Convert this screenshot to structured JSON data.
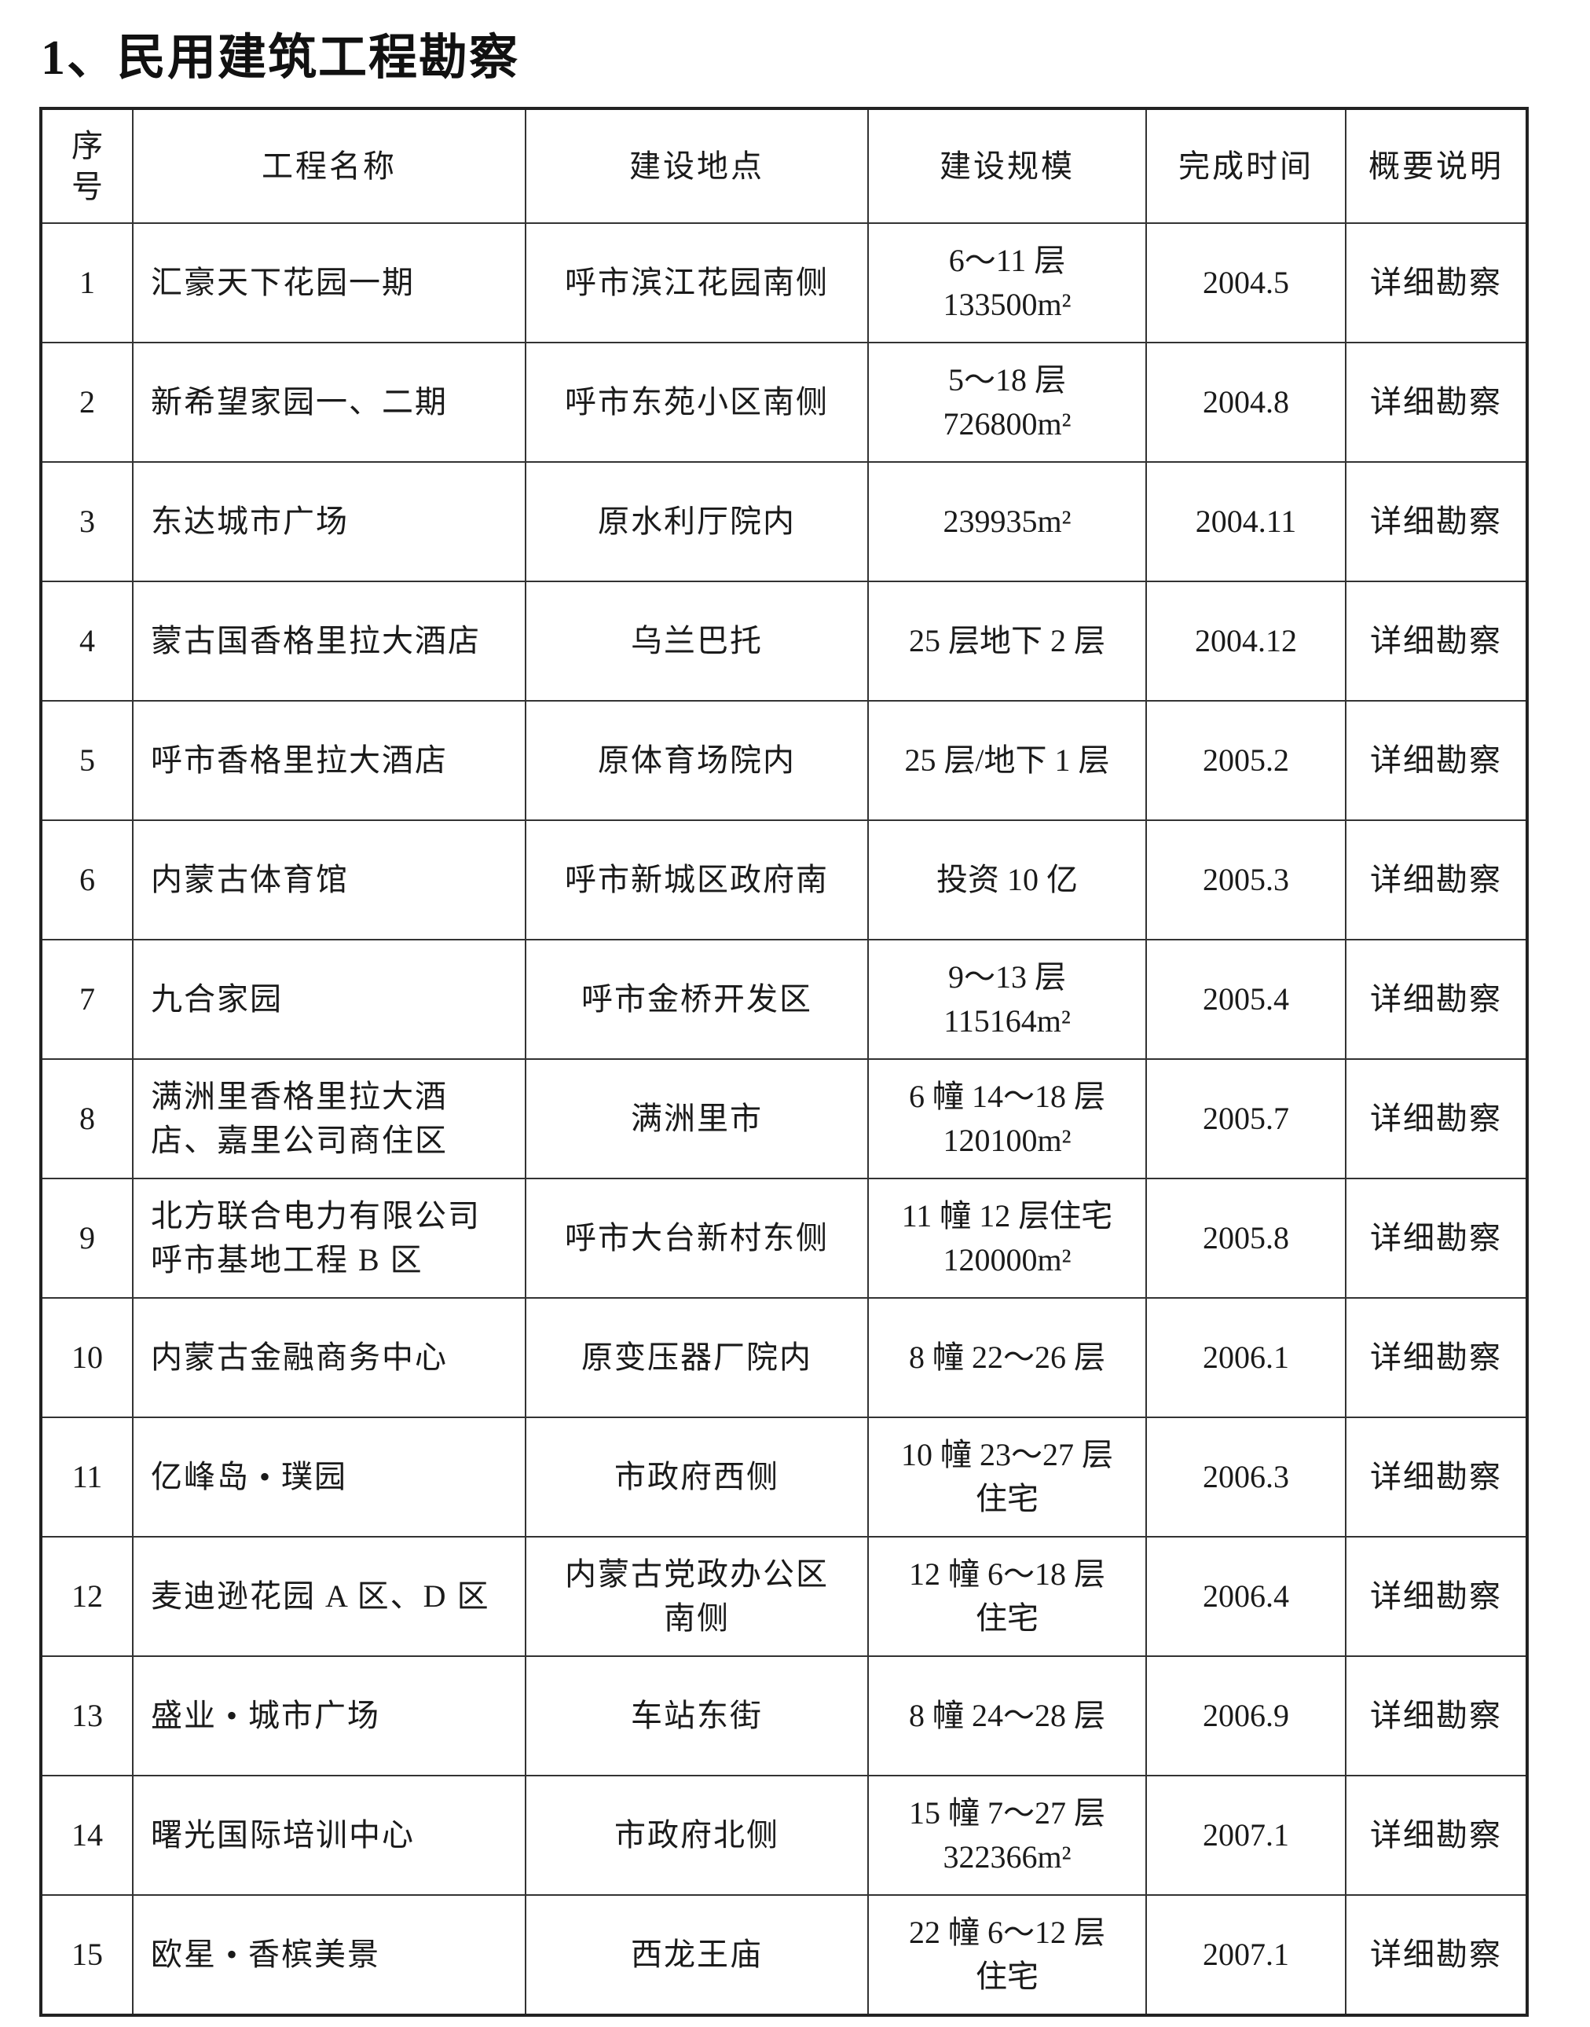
{
  "title": "1、民用建筑工程勘察",
  "table": {
    "headers": [
      "序号",
      "工程名称",
      "建设地点",
      "建设规模",
      "完成时间",
      "概要说明"
    ],
    "rows": [
      {
        "no": "1",
        "name": [
          "汇豪天下花园一期"
        ],
        "location": [
          "呼市滨江花园南侧"
        ],
        "scale": [
          "6～11 层",
          "133500m²"
        ],
        "date": "2004.5",
        "note": "详细勘察"
      },
      {
        "no": "2",
        "name": [
          "新希望家园一、二期"
        ],
        "location": [
          "呼市东苑小区南侧"
        ],
        "scale": [
          "5～18 层",
          "726800m²"
        ],
        "date": "2004.8",
        "note": "详细勘察"
      },
      {
        "no": "3",
        "name": [
          "东达城市广场"
        ],
        "location": [
          "原水利厅院内"
        ],
        "scale": [
          "239935m²"
        ],
        "date": "2004.11",
        "note": "详细勘察"
      },
      {
        "no": "4",
        "name": [
          "蒙古国香格里拉大酒店"
        ],
        "location": [
          "乌兰巴托"
        ],
        "scale": [
          "25 层地下 2 层"
        ],
        "date": "2004.12",
        "note": "详细勘察"
      },
      {
        "no": "5",
        "name": [
          "呼市香格里拉大酒店"
        ],
        "location": [
          "原体育场院内"
        ],
        "scale": [
          "25 层/地下 1 层"
        ],
        "date": "2005.2",
        "note": "详细勘察"
      },
      {
        "no": "6",
        "name": [
          "内蒙古体育馆"
        ],
        "location": [
          "呼市新城区政府南"
        ],
        "scale": [
          "投资 10 亿"
        ],
        "date": "2005.3",
        "note": "详细勘察"
      },
      {
        "no": "7",
        "name": [
          "九合家园"
        ],
        "location": [
          "呼市金桥开发区"
        ],
        "scale": [
          "9～13 层",
          "115164m²"
        ],
        "date": "2005.4",
        "note": "详细勘察"
      },
      {
        "no": "8",
        "name": [
          "满洲里香格里拉大酒",
          "店、嘉里公司商住区"
        ],
        "location": [
          "满洲里市"
        ],
        "scale": [
          "6 幢 14～18 层",
          "120100m²"
        ],
        "date": "2005.7",
        "note": "详细勘察"
      },
      {
        "no": "9",
        "name": [
          "北方联合电力有限公司",
          "呼市基地工程 B 区"
        ],
        "location": [
          "呼市大台新村东侧"
        ],
        "scale": [
          "11 幢 12 层住宅",
          "120000m²"
        ],
        "date": "2005.8",
        "note": "详细勘察"
      },
      {
        "no": "10",
        "name": [
          "内蒙古金融商务中心"
        ],
        "location": [
          "原变压器厂院内"
        ],
        "scale": [
          "8 幢 22～26 层"
        ],
        "date": "2006.1",
        "note": "详细勘察"
      },
      {
        "no": "11",
        "name": [
          "亿峰岛 • 璞园"
        ],
        "location": [
          "市政府西侧"
        ],
        "scale": [
          "10 幢 23～27 层",
          "住宅"
        ],
        "date": "2006.3",
        "note": "详细勘察"
      },
      {
        "no": "12",
        "name": [
          "麦迪逊花园 A 区、D 区"
        ],
        "location": [
          "内蒙古党政办公区",
          "南侧"
        ],
        "scale": [
          "12 幢 6～18 层",
          "住宅"
        ],
        "date": "2006.4",
        "note": "详细勘察"
      },
      {
        "no": "13",
        "name": [
          "盛业 • 城市广场"
        ],
        "location": [
          "车站东街"
        ],
        "scale": [
          "8 幢 24～28 层"
        ],
        "date": "2006.9",
        "note": "详细勘察"
      },
      {
        "no": "14",
        "name": [
          "曙光国际培训中心"
        ],
        "location": [
          "市政府北侧"
        ],
        "scale": [
          "15 幢 7～27 层",
          "322366m²"
        ],
        "date": "2007.1",
        "note": "详细勘察"
      },
      {
        "no": "15",
        "name": [
          "欧星 • 香槟美景"
        ],
        "location": [
          "西龙王庙"
        ],
        "scale": [
          "22 幢 6～12 层",
          "住宅"
        ],
        "date": "2007.1",
        "note": "详细勘察"
      }
    ]
  }
}
